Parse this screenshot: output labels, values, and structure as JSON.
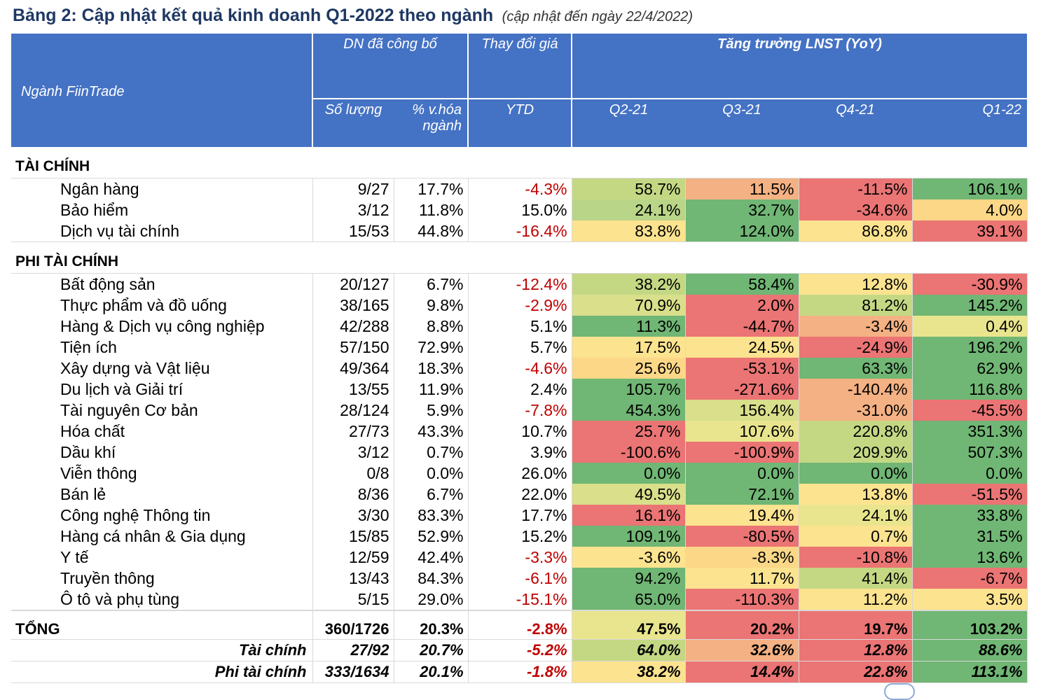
{
  "title": {
    "main": "Bảng 2: Cập nhật kết quả kinh doanh Q1-2022 theo ngành",
    "sub": "(cập nhật đến ngày 22/4/2022)"
  },
  "header": {
    "sector": "Ngành FiinTrade",
    "published_group": "DN đã công bố",
    "price_change_group": "Thay đổi giá",
    "growth_group": "Tăng trưởng LNST (YoY)",
    "count": "Số lượng",
    "mcap_line1": "% v.hóa",
    "mcap_line2": "ngành",
    "ytd": "YTD",
    "q2": "Q2-21",
    "q3": "Q3-21",
    "q4": "Q4-21",
    "q1": "Q1-22"
  },
  "sections": {
    "financial": "TÀI CHÍNH",
    "non_financial": "PHI TÀI CHÍNH"
  },
  "rows": [
    {
      "name": "Ngân hàng",
      "count": "9/27",
      "mcap": "17.7%",
      "ytd": "-4.3%",
      "q2": "58.7%",
      "q3": "11.5%",
      "q4": "-11.5%",
      "q1": "106.1%",
      "c2": "#c4d884",
      "c3": "#f4b183",
      "c4": "#eb7474",
      "c1": "#70b674"
    },
    {
      "name": "Bảo hiểm",
      "count": "3/12",
      "mcap": "11.8%",
      "ytd": "15.0%",
      "q2": "24.1%",
      "q3": "32.7%",
      "q4": "-34.6%",
      "q1": "4.0%",
      "c2": "#b9d588",
      "c3": "#70b674",
      "c4": "#eb7474",
      "c1": "#fbd787"
    },
    {
      "name": "Dịch vụ tài chính",
      "count": "15/53",
      "mcap": "44.8%",
      "ytd": "-16.4%",
      "q2": "83.8%",
      "q3": "124.0%",
      "q4": "86.8%",
      "q1": "39.1%",
      "c2": "#fbe38f",
      "c3": "#70b674",
      "c4": "#fbe38f",
      "c1": "#eb7474"
    },
    {
      "name": "Bất động sản",
      "count": "20/127",
      "mcap": "6.7%",
      "ytd": "-12.4%",
      "q2": "38.2%",
      "q3": "58.4%",
      "q4": "12.8%",
      "q1": "-30.9%",
      "c2": "#c4d884",
      "c3": "#70b674",
      "c4": "#fbe38f",
      "c1": "#eb7474"
    },
    {
      "name": "Thực phẩm và đồ uống",
      "count": "38/165",
      "mcap": "9.8%",
      "ytd": "-2.9%",
      "q2": "70.9%",
      "q3": "2.0%",
      "q4": "81.2%",
      "q1": "145.2%",
      "c2": "#d9df8a",
      "c3": "#eb7474",
      "c4": "#c4d884",
      "c1": "#70b674"
    },
    {
      "name": "Hàng & Dịch vụ công nghiệp",
      "count": "42/288",
      "mcap": "8.8%",
      "ytd": "5.1%",
      "q2": "11.3%",
      "q3": "-44.7%",
      "q4": "-3.4%",
      "q1": "0.4%",
      "c2": "#70b674",
      "c3": "#eb7474",
      "c4": "#f4b183",
      "c1": "#e9e58e"
    },
    {
      "name": "Tiện ích",
      "count": "57/150",
      "mcap": "72.9%",
      "ytd": "5.7%",
      "q2": "17.5%",
      "q3": "24.5%",
      "q4": "-24.9%",
      "q1": "196.2%",
      "c2": "#fbe38f",
      "c3": "#fbe38f",
      "c4": "#eb7474",
      "c1": "#70b674"
    },
    {
      "name": "Xây dựng và Vật liệu",
      "count": "49/364",
      "mcap": "18.3%",
      "ytd": "-4.6%",
      "q2": "25.6%",
      "q3": "-53.1%",
      "q4": "63.3%",
      "q1": "62.9%",
      "c2": "#fbd787",
      "c3": "#eb7474",
      "c4": "#70b674",
      "c1": "#70b674"
    },
    {
      "name": "Du lịch và Giải trí",
      "count": "13/55",
      "mcap": "11.9%",
      "ytd": "2.4%",
      "q2": "105.7%",
      "q3": "-271.6%",
      "q4": "-140.4%",
      "q1": "116.8%",
      "c2": "#70b674",
      "c3": "#eb7474",
      "c4": "#f4b183",
      "c1": "#70b674"
    },
    {
      "name": "Tài nguyên Cơ bản",
      "count": "28/124",
      "mcap": "5.9%",
      "ytd": "-7.8%",
      "q2": "454.3%",
      "q3": "156.4%",
      "q4": "-31.0%",
      "q1": "-45.5%",
      "c2": "#70b674",
      "c3": "#d9df8a",
      "c4": "#f4b183",
      "c1": "#eb7474"
    },
    {
      "name": "Hóa chất",
      "count": "27/73",
      "mcap": "43.3%",
      "ytd": "10.7%",
      "q2": "25.7%",
      "q3": "107.6%",
      "q4": "220.8%",
      "q1": "351.3%",
      "c2": "#eb7474",
      "c3": "#e9e58e",
      "c4": "#c4d884",
      "c1": "#70b674"
    },
    {
      "name": "Dầu khí",
      "count": "3/12",
      "mcap": "0.7%",
      "ytd": "3.9%",
      "q2": "-100.6%",
      "q3": "-100.9%",
      "q4": "209.9%",
      "q1": "507.3%",
      "c2": "#eb7474",
      "c3": "#eb7474",
      "c4": "#c4d884",
      "c1": "#70b674"
    },
    {
      "name": "Viễn thông",
      "count": "0/8",
      "mcap": "0.0%",
      "ytd": "26.0%",
      "q2": "0.0%",
      "q3": "0.0%",
      "q4": "0.0%",
      "q1": "0.0%",
      "c2": "#70b674",
      "c3": "#70b674",
      "c4": "#70b674",
      "c1": "#70b674"
    },
    {
      "name": "Bán lẻ",
      "count": "8/36",
      "mcap": "6.7%",
      "ytd": "22.0%",
      "q2": "49.5%",
      "q3": "72.1%",
      "q4": "13.8%",
      "q1": "-51.5%",
      "c2": "#d9df8a",
      "c3": "#70b674",
      "c4": "#fbe38f",
      "c1": "#eb7474"
    },
    {
      "name": "Công nghệ Thông tin",
      "count": "3/30",
      "mcap": "83.3%",
      "ytd": "17.7%",
      "q2": "16.1%",
      "q3": "19.4%",
      "q4": "24.1%",
      "q1": "33.8%",
      "c2": "#eb7474",
      "c3": "#fbe38f",
      "c4": "#e9e58e",
      "c1": "#70b674"
    },
    {
      "name": "Hàng cá nhân & Gia dụng",
      "count": "15/85",
      "mcap": "52.9%",
      "ytd": "15.2%",
      "q2": "109.1%",
      "q3": "-80.5%",
      "q4": "0.7%",
      "q1": "31.5%",
      "c2": "#70b674",
      "c3": "#eb7474",
      "c4": "#fbe38f",
      "c1": "#70b674"
    },
    {
      "name": "Y tế",
      "count": "12/59",
      "mcap": "42.4%",
      "ytd": "-3.3%",
      "q2": "-3.6%",
      "q3": "-8.3%",
      "q4": "-10.8%",
      "q1": "13.6%",
      "c2": "#fbe38f",
      "c3": "#fbd787",
      "c4": "#eb7474",
      "c1": "#70b674"
    },
    {
      "name": "Truyền thông",
      "count": "13/43",
      "mcap": "84.3%",
      "ytd": "-6.1%",
      "q2": "94.2%",
      "q3": "11.7%",
      "q4": "41.4%",
      "q1": "-6.7%",
      "c2": "#70b674",
      "c3": "#fbe38f",
      "c4": "#c4d884",
      "c1": "#eb7474"
    },
    {
      "name": "Ô tô và phụ tùng",
      "count": "5/15",
      "mcap": "29.0%",
      "ytd": "-15.1%",
      "q2": "65.0%",
      "q3": "-110.3%",
      "q4": "11.2%",
      "q1": "3.5%",
      "c2": "#70b674",
      "c3": "#eb7474",
      "c4": "#fbe38f",
      "c1": "#fbe38f"
    }
  ],
  "totals": [
    {
      "name": "TỔNG",
      "count": "360/1726",
      "mcap": "20.3%",
      "ytd": "-2.8%",
      "q2": "47.5%",
      "q3": "20.2%",
      "q4": "19.7%",
      "q1": "103.2%",
      "c2": "#e9e58e",
      "c3": "#eb7474",
      "c4": "#eb7474",
      "c1": "#70b674"
    },
    {
      "name": "Tài chính",
      "count": "27/92",
      "mcap": "20.7%",
      "ytd": "-5.2%",
      "q2": "64.0%",
      "q3": "32.6%",
      "q4": "12.8%",
      "q1": "88.6%",
      "c2": "#c4d884",
      "c3": "#f4b183",
      "c4": "#eb7474",
      "c1": "#70b674"
    },
    {
      "name": "Phi tài chính",
      "count": "333/1634",
      "mcap": "20.1%",
      "ytd": "-1.8%",
      "q2": "38.2%",
      "q3": "14.4%",
      "q4": "22.8%",
      "q1": "113.1%",
      "c2": "#fbe38f",
      "c3": "#eb7474",
      "c4": "#eb7474",
      "c1": "#70b674"
    }
  ],
  "colors": {
    "header_bg": "#4472c4",
    "negative_text": "#c00000"
  }
}
